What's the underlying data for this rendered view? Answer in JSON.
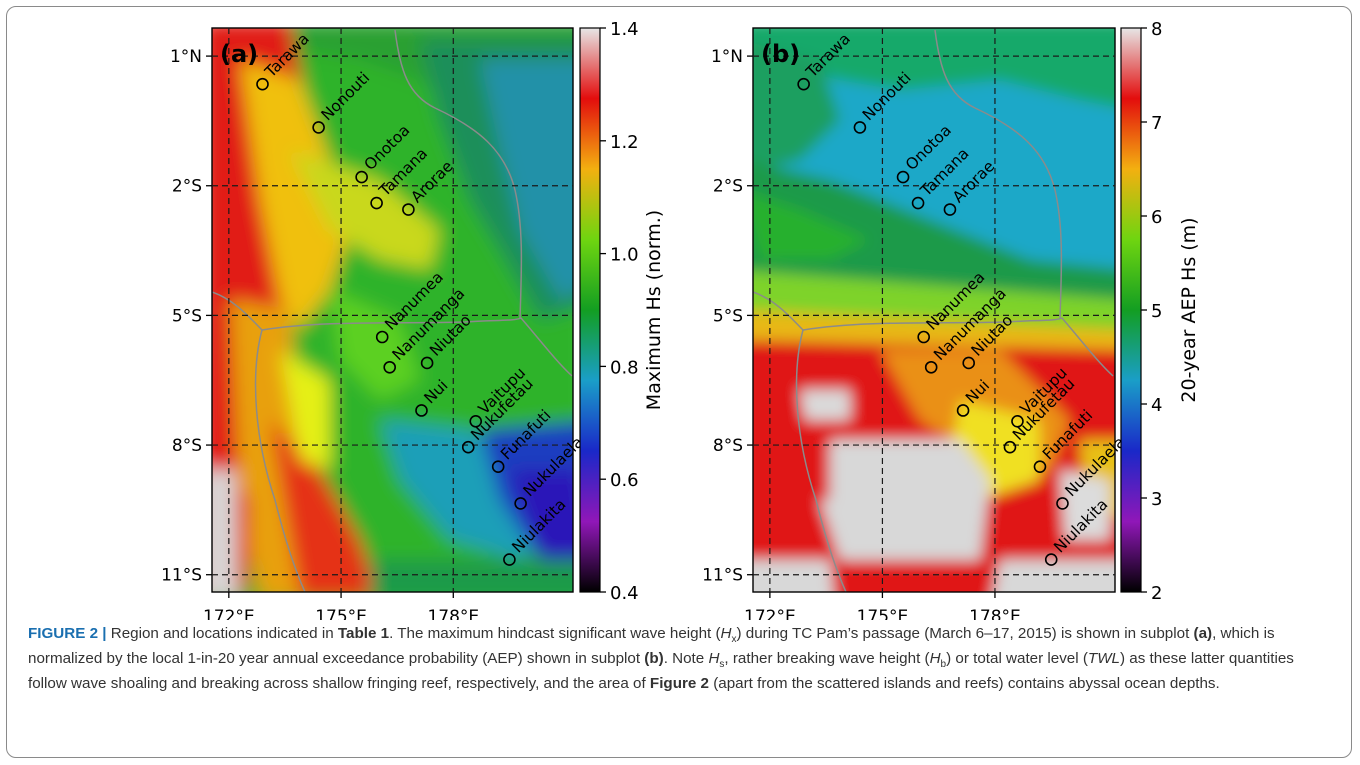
{
  "figure": {
    "panels": [
      {
        "id": "a",
        "label": "(a)",
        "colorbar_label": "Maximum Hs (norm.)",
        "colorbar_ticks": [
          "1.4",
          "1.2",
          "1.0",
          "0.8",
          "0.6",
          "0.4"
        ],
        "colorbar_colors": [
          "#e6e6e6",
          "#e30d0d",
          "#f3b010",
          "#6fd510",
          "#139e22",
          "#1a9ec8",
          "#1a28c8",
          "#9017b8",
          "#000000"
        ],
        "background": "a",
        "islands": [
          {
            "name": "Tarawa",
            "lon": 172.9,
            "lat": 0.35
          },
          {
            "name": "Nonouti",
            "lon": 174.4,
            "lat": -0.65
          },
          {
            "name": "Onotoa",
            "lon": 175.55,
            "lat": -1.8
          },
          {
            "name": "Tamana",
            "lon": 175.95,
            "lat": -2.4
          },
          {
            "name": "Arorae",
            "lon": 176.8,
            "lat": -2.55
          },
          {
            "name": "Nanumea",
            "lon": 176.1,
            "lat": -5.5
          },
          {
            "name": "Nanumanga",
            "lon": 176.3,
            "lat": -6.2
          },
          {
            "name": "Niutao",
            "lon": 177.3,
            "lat": -6.1
          },
          {
            "name": "Nui",
            "lon": 177.15,
            "lat": -7.2
          },
          {
            "name": "Vaitupu",
            "lon": 178.6,
            "lat": -7.45
          },
          {
            "name": "Nukufetau",
            "lon": 178.4,
            "lat": -8.05
          },
          {
            "name": "Funafuti",
            "lon": 179.2,
            "lat": -8.5
          },
          {
            "name": "Nukulaelae",
            "lon": 179.8,
            "lat": -9.35
          },
          {
            "name": "Niulakita",
            "lon": 179.5,
            "lat": -10.65
          }
        ]
      },
      {
        "id": "b",
        "label": "(b)",
        "colorbar_label": "20-year AEP Hs (m)",
        "colorbar_ticks": [
          "8",
          "7",
          "6",
          "5",
          "4",
          "3",
          "2"
        ],
        "colorbar_colors": [
          "#e6e6e6",
          "#e30d0d",
          "#f3b010",
          "#6fd510",
          "#139e22",
          "#1a9ec8",
          "#1a28c8",
          "#9017b8",
          "#000000"
        ],
        "background": "b",
        "islands": [
          {
            "name": "Tarawa",
            "lon": 172.9,
            "lat": 0.35
          },
          {
            "name": "Nonouti",
            "lon": 174.4,
            "lat": -0.65
          },
          {
            "name": "Onotoa",
            "lon": 175.55,
            "lat": -1.8
          },
          {
            "name": "Tamana",
            "lon": 175.95,
            "lat": -2.4
          },
          {
            "name": "Arorae",
            "lon": 176.8,
            "lat": -2.55
          },
          {
            "name": "Nanumea",
            "lon": 176.1,
            "lat": -5.5
          },
          {
            "name": "Nanumanga",
            "lon": 176.3,
            "lat": -6.2
          },
          {
            "name": "Niutao",
            "lon": 177.3,
            "lat": -6.1
          },
          {
            "name": "Nui",
            "lon": 177.15,
            "lat": -7.2
          },
          {
            "name": "Vaitupu",
            "lon": 178.6,
            "lat": -7.45
          },
          {
            "name": "Nukufetau",
            "lon": 178.4,
            "lat": -8.05
          },
          {
            "name": "Funafuti",
            "lon": 179.2,
            "lat": -8.5
          },
          {
            "name": "Nukulaelae",
            "lon": 179.8,
            "lat": -9.35
          },
          {
            "name": "Niulakita",
            "lon": 179.5,
            "lat": -10.65
          }
        ]
      }
    ],
    "x_ticks": [
      "172°E",
      "175°E",
      "178°E"
    ],
    "x_tick_values": [
      172,
      175,
      178
    ],
    "y_ticks": [
      "1°N",
      "2°S",
      "5°S",
      "8°S",
      "11°S"
    ],
    "y_tick_values": [
      1,
      -2,
      -5,
      -8,
      -11
    ]
  },
  "caption": {
    "label": "FIGURE 2 |",
    "t1": " Region and locations indicated in ",
    "table_ref": "Table 1",
    "t2": ". The maximum hindcast significant wave height (",
    "hx_var": "H",
    "hx_sub": "x",
    "t3": ") during TC Pam’s passage (March 6–17, 2015) is shown in subplot ",
    "sub_a": "(a)",
    "t4": ", which is normalized by the local 1-in-20 year annual exceedance probability (AEP) shown in subplot ",
    "sub_b": "(b)",
    "t5": ". Note ",
    "hs_var": "H",
    "hs_sub": "s",
    "t6": ", rather breaking wave height (",
    "hb_var": "H",
    "hb_sub": "b",
    "t7": ") or total water level (",
    "twl": "TWL",
    "t8": ") as these latter quantities follow wave shoaling and breaking across shallow fringing reef, respectively, and the area of ",
    "fig_ref": "Figure 2",
    "t9": " (apart from the scattered islands and reefs) contains abyssal ocean depths."
  }
}
